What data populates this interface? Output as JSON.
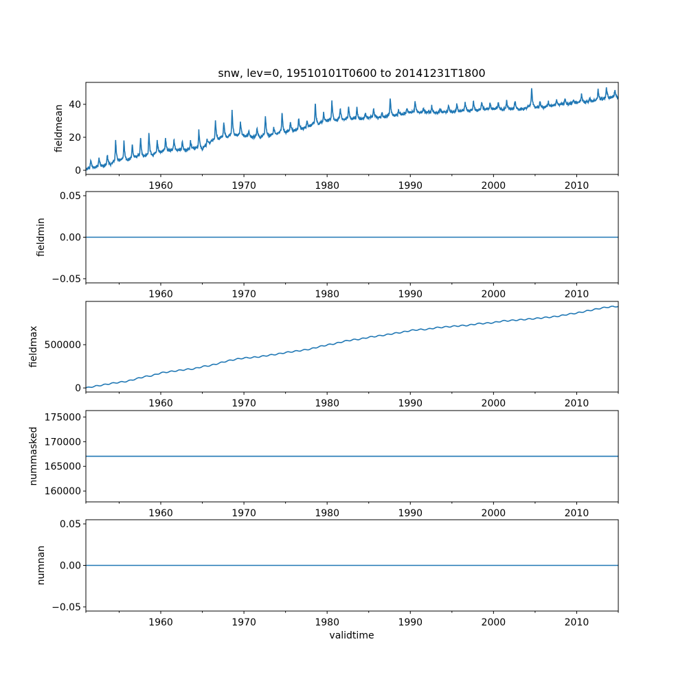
{
  "chart_data": {
    "type": "line",
    "title": "snw, lev=0, 19510101T0600 to 20141231T1800",
    "xlabel": "validtime",
    "xlim": [
      1951.0,
      2015.0
    ],
    "x_tick_labels": [
      "1960",
      "1970",
      "1980",
      "1990",
      "2000",
      "2010"
    ],
    "x_ticks": [
      1960,
      1970,
      1980,
      1990,
      2000,
      2010
    ],
    "x_minor_ticks": [
      1951,
      1955,
      1965,
      1975,
      1985,
      1995,
      2005,
      2015
    ],
    "line_color": "#1f77b4",
    "panels": [
      {
        "ylabel": "fieldmean",
        "ylim": [
          -2.5,
          53.3
        ],
        "y_ticks": [
          0,
          20,
          40
        ],
        "y_tick_labels": [
          "0",
          "20",
          "40"
        ],
        "years": [
          1951,
          1952,
          1953,
          1954,
          1955,
          1956,
          1957,
          1958,
          1959,
          1960,
          1961,
          1962,
          1963,
          1964,
          1965,
          1966,
          1967,
          1968,
          1969,
          1970,
          1971,
          1972,
          1973,
          1974,
          1975,
          1976,
          1977,
          1978,
          1979,
          1980,
          1981,
          1982,
          1983,
          1984,
          1985,
          1986,
          1987,
          1988,
          1989,
          1990,
          1991,
          1992,
          1993,
          1994,
          1995,
          1996,
          1997,
          1998,
          1999,
          2000,
          2001,
          2002,
          2003,
          2004,
          2005,
          2006,
          2007,
          2008,
          2009,
          2010,
          2011,
          2012,
          2013,
          2014
        ],
        "annual_base": [
          0.5,
          1.5,
          2.5,
          3.5,
          6,
          6,
          8,
          8,
          9,
          11,
          12,
          12,
          12,
          13,
          13,
          17,
          19,
          20,
          21,
          21,
          20,
          20,
          21,
          22,
          23,
          24,
          25,
          27,
          28,
          30,
          30,
          31,
          31,
          31,
          32,
          32,
          32,
          33,
          34,
          35,
          35,
          35,
          35,
          35,
          35,
          36,
          36,
          36,
          37,
          37,
          37,
          37,
          37,
          38,
          38,
          38,
          39,
          40,
          40,
          41,
          41,
          42,
          43,
          44
        ],
        "annual_peak": [
          6.5,
          8,
          9.5,
          18.7,
          18,
          16,
          20.5,
          23,
          18,
          19.7,
          19,
          18,
          18,
          24.6,
          19.3,
          30.8,
          30,
          37,
          30,
          24,
          26,
          33.6,
          26.7,
          35.7,
          30,
          31.8,
          30,
          41,
          35.7,
          42.4,
          37.8,
          38.9,
          38.7,
          35,
          38,
          35,
          44.4,
          36.4,
          37.8,
          42,
          37.8,
          39.4,
          37.8,
          40,
          40,
          41.5,
          42.4,
          42,
          41,
          41.5,
          42.6,
          42.6,
          37,
          50.7,
          42,
          42,
          42.6,
          43.7,
          42.6,
          46.8,
          44,
          49.3,
          50.3,
          48.9
        ]
      },
      {
        "ylabel": "fieldmin",
        "ylim": [
          -0.055,
          0.055
        ],
        "y_ticks": [
          -0.05,
          0,
          0.05
        ],
        "y_tick_labels": [
          "−0.05",
          "0.00",
          "0.05"
        ],
        "constant": 0
      },
      {
        "ylabel": "fieldmax",
        "ylim": [
          -47000,
          1000000
        ],
        "y_ticks": [
          0,
          500000
        ],
        "y_tick_labels": [
          "0",
          "500000"
        ],
        "x": [
          1951,
          1952,
          1953,
          1954,
          1955,
          1956,
          1957,
          1958,
          1959,
          1960,
          1961,
          1962,
          1963,
          1964,
          1965,
          1966,
          1967,
          1968,
          1969,
          1970,
          1971,
          1972,
          1973,
          1974,
          1975,
          1976,
          1977,
          1978,
          1979,
          1980,
          1981,
          1982,
          1983,
          1984,
          1985,
          1986,
          1987,
          1988,
          1989,
          1990,
          1991,
          1992,
          1993,
          1994,
          1995,
          1996,
          1997,
          1998,
          1999,
          2000,
          2001,
          2002,
          2003,
          2004,
          2005,
          2006,
          2007,
          2008,
          2009,
          2010,
          2011,
          2012,
          2013,
          2014,
          2015
        ],
        "values": [
          0,
          18000,
          34000,
          52000,
          65000,
          78000,
          104000,
          130000,
          143000,
          174000,
          187000,
          200000,
          213000,
          221000,
          247000,
          260000,
          286000,
          312000,
          331000,
          346000,
          352000,
          362000,
          378000,
          391000,
          409000,
          422000,
          435000,
          450000,
          476000,
          497000,
          513000,
          539000,
          555000,
          565000,
          586000,
          599000,
          612000,
          630000,
          643000,
          664000,
          674000,
          677000,
          695000,
          703000,
          711000,
          719000,
          724000,
          742000,
          747000,
          755000,
          773000,
          779000,
          786000,
          794000,
          802000,
          812000,
          820000,
          833000,
          852000,
          865000,
          885000,
          904000,
          924000,
          937000,
          943000
        ]
      },
      {
        "ylabel": "nummasked",
        "ylim": [
          157800,
          176300
        ],
        "y_ticks": [
          160000,
          165000,
          170000,
          175000
        ],
        "y_tick_labels": [
          "160000",
          "165000",
          "170000",
          "175000"
        ],
        "constant": 167040
      },
      {
        "ylabel": "numnan",
        "ylim": [
          -0.055,
          0.055
        ],
        "y_ticks": [
          -0.05,
          0,
          0.05
        ],
        "y_tick_labels": [
          "−0.05",
          "0.00",
          "0.05"
        ],
        "constant": 0
      }
    ]
  }
}
